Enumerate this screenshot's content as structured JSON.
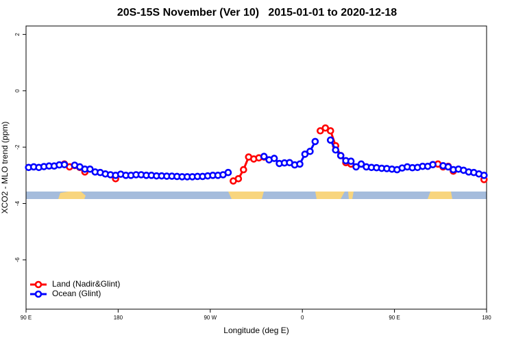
{
  "chart_data": {
    "type": "line",
    "title": "20S-15S November (Ver 10)   2015-01-01 to 2020-12-18",
    "x_label": "Longitude (deg E)",
    "y_label": "XCO2 - MLO trend (ppm)",
    "xlim": [
      90,
      540
    ],
    "ylim": [
      -7.75,
      2.3
    ],
    "xticks": [
      {
        "value": 90,
        "label": "90 E"
      },
      {
        "value": 180,
        "label": "180"
      },
      {
        "value": 270,
        "label": "90 W"
      },
      {
        "value": 360,
        "label": "0"
      },
      {
        "value": 450,
        "label": "90 E"
      },
      {
        "value": 540,
        "label": "180"
      }
    ],
    "yticks": [
      2,
      0,
      -2,
      -4,
      -6
    ],
    "legend": "bottom-left",
    "x": [
      92.5,
      97.5,
      102.5,
      107.5,
      112.5,
      117.5,
      122.5,
      127.5,
      132.5,
      137.5,
      142.5,
      147.5,
      152.5,
      157.5,
      162.5,
      167.5,
      172.5,
      177.5,
      182.5,
      187.5,
      192.5,
      197.5,
      202.5,
      207.5,
      212.5,
      217.5,
      222.5,
      227.5,
      232.5,
      237.5,
      242.5,
      247.5,
      252.5,
      257.5,
      262.5,
      267.5,
      272.5,
      277.5,
      282.5,
      287.5,
      292.5,
      297.5,
      302.5,
      307.5,
      312.5,
      317.5,
      322.5,
      327.5,
      332.5,
      337.5,
      342.5,
      347.5,
      352.5,
      357.5,
      362.5,
      367.5,
      372.5,
      377.5,
      382.5,
      387.5,
      392.5,
      397.5,
      402.5,
      407.5,
      412.5,
      417.5,
      422.5,
      427.5,
      432.5,
      437.5,
      442.5,
      447.5,
      452.5,
      457.5,
      462.5,
      467.5,
      472.5,
      477.5,
      482.5,
      487.5,
      492.5,
      497.5,
      502.5,
      507.5,
      512.5,
      517.5,
      522.5,
      527.5,
      532.5,
      537.5
    ],
    "series": [
      {
        "name": "Land (Nadir&Glint)",
        "color": "#ff0000",
        "values": [
          null,
          null,
          null,
          null,
          null,
          null,
          null,
          -2.6,
          -2.7,
          -2.65,
          -2.72,
          -2.88,
          null,
          null,
          null,
          null,
          null,
          -3.12,
          null,
          null,
          null,
          null,
          null,
          null,
          null,
          null,
          null,
          null,
          null,
          null,
          null,
          null,
          null,
          null,
          null,
          null,
          null,
          null,
          null,
          null,
          -3.2,
          -3.12,
          -2.8,
          -2.35,
          -2.42,
          -2.38,
          -2.35,
          null,
          null,
          null,
          null,
          null,
          null,
          null,
          null,
          null,
          null,
          -1.42,
          -1.32,
          -1.42,
          -1.95,
          -2.3,
          -2.55,
          -2.6,
          null,
          null,
          null,
          null,
          null,
          null,
          null,
          null,
          null,
          null,
          null,
          null,
          null,
          null,
          null,
          -2.62,
          -2.6,
          -2.7,
          -2.68,
          -2.85,
          null,
          null,
          null,
          null,
          null,
          -3.15
        ]
      },
      {
        "name": "Ocean (Glint)",
        "color": "#0000ff",
        "values": [
          -2.72,
          -2.7,
          -2.72,
          -2.69,
          -2.67,
          -2.67,
          -2.63,
          -2.62,
          null,
          -2.64,
          -2.7,
          -2.78,
          -2.78,
          -2.88,
          -2.9,
          -2.95,
          -2.98,
          -3.0,
          -2.96,
          -3.0,
          -3.0,
          -2.98,
          -2.98,
          -3.0,
          -3.0,
          -3.02,
          -3.02,
          -3.03,
          -3.03,
          -3.04,
          -3.05,
          -3.05,
          -3.05,
          -3.04,
          -3.04,
          -3.02,
          -3.0,
          -3.0,
          -2.98,
          -2.9,
          null,
          null,
          null,
          null,
          null,
          null,
          -2.33,
          -2.45,
          -2.4,
          -2.58,
          -2.56,
          -2.55,
          -2.63,
          -2.6,
          -2.25,
          -2.15,
          -1.8,
          null,
          null,
          -1.75,
          -2.1,
          -2.3,
          -2.48,
          -2.5,
          -2.7,
          -2.6,
          -2.7,
          -2.72,
          -2.73,
          -2.75,
          -2.76,
          -2.78,
          -2.8,
          -2.74,
          -2.7,
          -2.73,
          -2.72,
          -2.68,
          -2.68,
          -2.62,
          null,
          -2.66,
          -2.7,
          -2.8,
          -2.78,
          -2.82,
          -2.88,
          -2.9,
          -2.95,
          -3.0
        ]
      }
    ]
  }
}
